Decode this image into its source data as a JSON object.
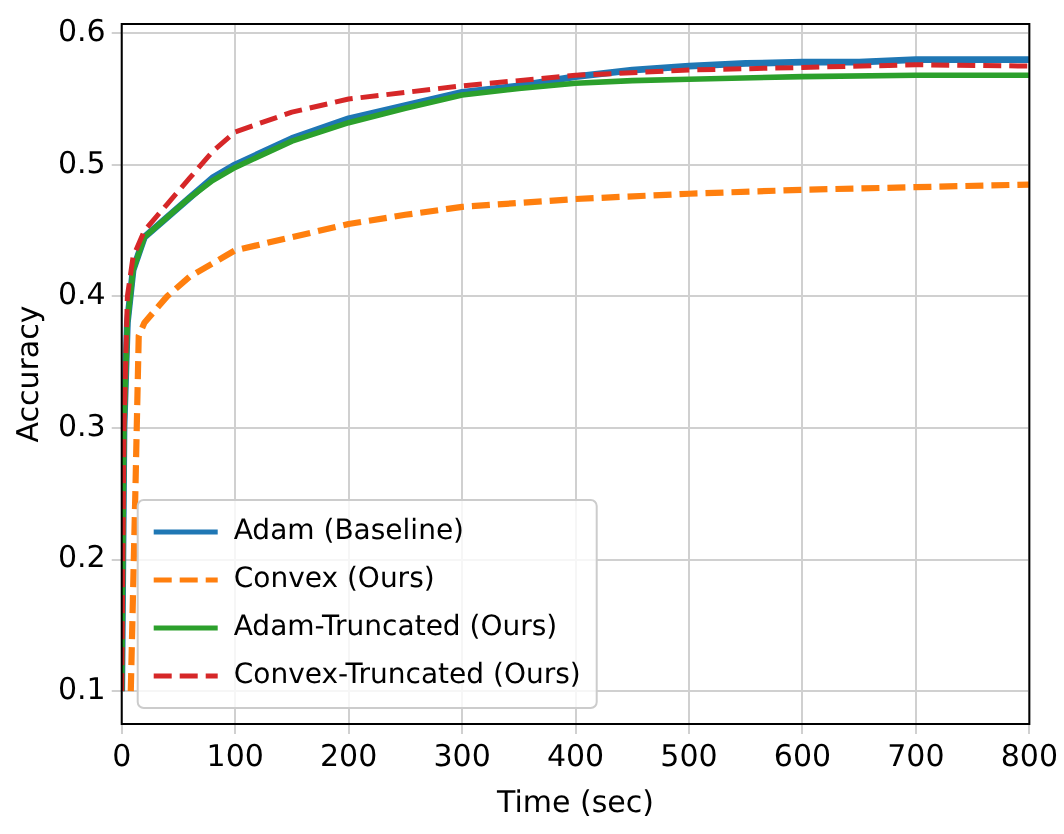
{
  "chart_data": {
    "type": "line",
    "xlabel": "Time (sec)",
    "ylabel": "Accuracy",
    "xlim": [
      0,
      800
    ],
    "xticks": [
      0,
      100,
      200,
      300,
      400,
      500,
      600,
      700,
      800
    ],
    "ylim": [
      0.075,
      0.607
    ],
    "yticks": [
      0.1,
      0.2,
      0.3,
      0.4,
      0.5,
      0.6
    ],
    "grid": true,
    "legend": "bottom left",
    "marker": "none",
    "series": [
      {
        "name": "Adam (Baseline)",
        "color": "#1f77b4",
        "line_style": "solid",
        "x": [
          0,
          2,
          5,
          10,
          20,
          40,
          60,
          80,
          100,
          150,
          200,
          250,
          300,
          350,
          400,
          450,
          500,
          550,
          600,
          650,
          700,
          750,
          800
        ],
        "values": [
          0.1,
          0.3,
          0.38,
          0.42,
          0.445,
          0.46,
          0.475,
          0.49,
          0.5,
          0.52,
          0.535,
          0.545,
          0.555,
          0.56,
          0.567,
          0.572,
          0.575,
          0.577,
          0.578,
          0.578,
          0.58,
          0.58,
          0.58
        ]
      },
      {
        "name": "Convex (Ours)",
        "color": "#ff7f0e",
        "line_style": "dashed",
        "x": [
          8,
          12,
          15,
          20,
          40,
          60,
          80,
          100,
          150,
          200,
          250,
          300,
          400,
          500,
          600,
          700,
          800
        ],
        "values": [
          0.1,
          0.25,
          0.37,
          0.38,
          0.4,
          0.415,
          0.425,
          0.435,
          0.445,
          0.455,
          0.462,
          0.468,
          0.474,
          0.478,
          0.481,
          0.483,
          0.485
        ]
      },
      {
        "name": "Adam-Truncated (Ours)",
        "color": "#2ca02c",
        "line_style": "solid",
        "x": [
          0,
          2,
          5,
          10,
          20,
          40,
          60,
          80,
          100,
          150,
          200,
          250,
          300,
          350,
          400,
          450,
          500,
          600,
          700,
          800
        ],
        "values": [
          0.1,
          0.3,
          0.38,
          0.42,
          0.445,
          0.46,
          0.475,
          0.488,
          0.498,
          0.518,
          0.532,
          0.543,
          0.553,
          0.558,
          0.562,
          0.564,
          0.565,
          0.567,
          0.568,
          0.568
        ]
      },
      {
        "name": "Convex-Truncated (Ours)",
        "color": "#d62728",
        "line_style": "dashed",
        "x": [
          0,
          2,
          5,
          10,
          20,
          40,
          60,
          80,
          100,
          150,
          200,
          250,
          300,
          400,
          500,
          600,
          700,
          800
        ],
        "values": [
          0.1,
          0.3,
          0.4,
          0.43,
          0.45,
          0.47,
          0.49,
          0.51,
          0.525,
          0.54,
          0.55,
          0.555,
          0.56,
          0.568,
          0.572,
          0.574,
          0.576,
          0.575
        ]
      }
    ]
  }
}
